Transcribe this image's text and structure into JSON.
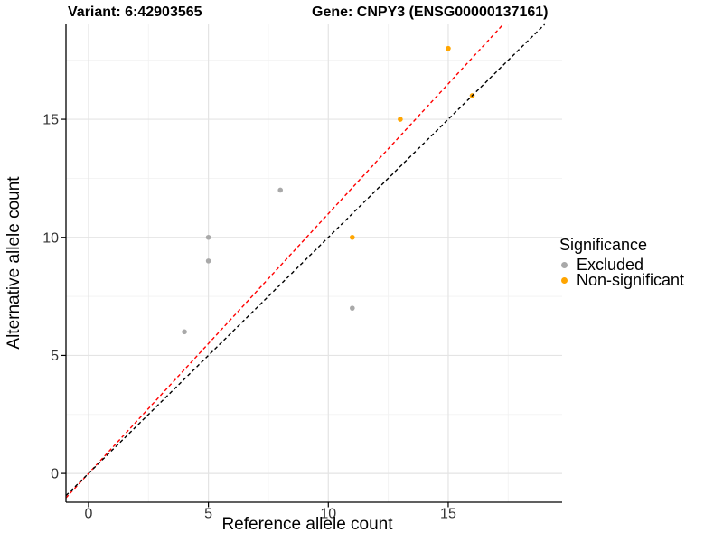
{
  "header": {
    "variant_title": "Variant: 6:42903565",
    "gene_title": "Gene: CNPY3 (ENSG00000137161)"
  },
  "chart_data": {
    "type": "scatter",
    "xlabel": "Reference allele count",
    "ylabel": "Alternative allele count",
    "xlim": [
      -0.94,
      19.75
    ],
    "ylim": [
      -1.22,
      19.02
    ],
    "x_major_ticks": [
      0,
      5,
      10,
      15
    ],
    "y_major_ticks": [
      0,
      5,
      10,
      15
    ],
    "x_minor_ticks": [
      2.5,
      7.5,
      12.5,
      17.5
    ],
    "y_minor_ticks": [
      2.5,
      7.5,
      12.5,
      17.5
    ],
    "grid": true,
    "legend_position": "right",
    "series": [
      {
        "name": "Excluded",
        "color": "#A9A9A9",
        "points": [
          [
            4,
            6
          ],
          [
            5,
            9
          ],
          [
            5,
            10
          ],
          [
            8,
            12
          ],
          [
            11,
            7
          ]
        ]
      },
      {
        "name": "Non-significant",
        "color": "#FFA500",
        "points": [
          [
            11,
            10
          ],
          [
            13,
            15
          ],
          [
            15,
            18
          ],
          [
            16,
            16
          ]
        ]
      }
    ],
    "ablines": [
      {
        "name": "fit-line",
        "slope": 1.1,
        "intercept": 0,
        "color": "#FF0000",
        "style": "dashed"
      },
      {
        "name": "identity-line",
        "slope": 1.0,
        "intercept": 0,
        "color": "#000000",
        "style": "dashed"
      }
    ],
    "legend": {
      "title": "Significance",
      "entries": [
        {
          "label": "Excluded",
          "color": "#A9A9A9"
        },
        {
          "label": "Non-significant",
          "color": "#FFA500"
        }
      ]
    },
    "colors": {
      "grid_major": "#E4E4E4",
      "grid_minor": "#F2F2F2",
      "axis": "#000000",
      "tick_label": "#333333"
    }
  }
}
